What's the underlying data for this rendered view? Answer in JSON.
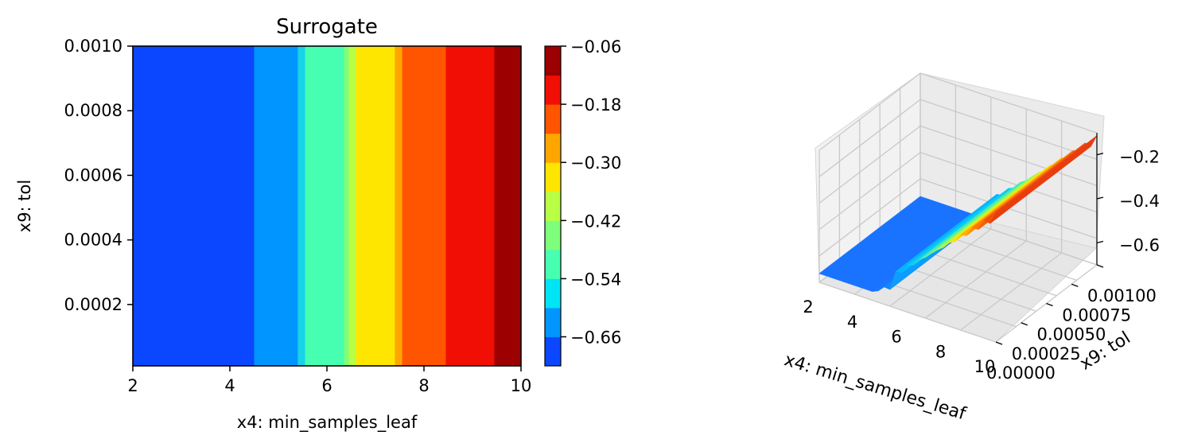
{
  "chart_data": [
    {
      "type": "heatmap",
      "title": "Surrogate",
      "xlabel": "x4: min_samples_leaf",
      "ylabel": "x9: tol",
      "xlim": [
        2,
        10
      ],
      "ylim": [
        1e-05,
        0.001
      ],
      "x_ticks": [
        "2",
        "4",
        "6",
        "8",
        "10"
      ],
      "y_ticks": [
        "0.0002",
        "0.0004",
        "0.0006",
        "0.0008",
        "0.0010"
      ],
      "x_tick_values": [
        2,
        4,
        6,
        8,
        10
      ],
      "y_tick_values": [
        0.0002,
        0.0004,
        0.0006,
        0.0008,
        0.001
      ],
      "bands": [
        {
          "x0": 2.0,
          "x1": 4.5,
          "color": "#0a47ff"
        },
        {
          "x0": 4.5,
          "x1": 5.4,
          "color": "#0095ff"
        },
        {
          "x0": 5.4,
          "x1": 5.55,
          "color": "#19d3e9"
        },
        {
          "x0": 5.55,
          "x1": 6.35,
          "color": "#46ffb0"
        },
        {
          "x0": 6.35,
          "x1": 6.45,
          "color": "#7eff7b"
        },
        {
          "x0": 6.45,
          "x1": 6.6,
          "color": "#b8ff45"
        },
        {
          "x0": 6.6,
          "x1": 7.4,
          "color": "#ffe600"
        },
        {
          "x0": 7.4,
          "x1": 7.55,
          "color": "#ffa500"
        },
        {
          "x0": 7.55,
          "x1": 8.45,
          "color": "#ff5500"
        },
        {
          "x0": 8.45,
          "x1": 9.45,
          "color": "#f10f05"
        },
        {
          "x0": 9.45,
          "x1": 10.0,
          "color": "#9c0000"
        }
      ],
      "colorbar": {
        "ticks": [
          "−0.06",
          "−0.18",
          "−0.30",
          "−0.42",
          "−0.54",
          "−0.66"
        ],
        "tick_values": [
          -0.06,
          -0.18,
          -0.3,
          -0.42,
          -0.54,
          -0.66
        ],
        "range": [
          -0.72,
          -0.06
        ],
        "levels": [
          -0.72,
          -0.66,
          -0.6,
          -0.54,
          -0.48,
          -0.42,
          -0.36,
          -0.3,
          -0.24,
          -0.18,
          -0.12,
          -0.06
        ],
        "colors": [
          "#0a47ff",
          "#0095ff",
          "#00e5f5",
          "#46ffb0",
          "#7eff7b",
          "#b8ff45",
          "#ffe600",
          "#ffa500",
          "#ff5500",
          "#f10f05",
          "#9c0000"
        ]
      }
    },
    {
      "type": "surface3d",
      "xlabel": "x4: min_samples_leaf",
      "ylabel": "x9: tol",
      "x_ticks": [
        "2",
        "4",
        "6",
        "8",
        "10"
      ],
      "y_ticks": [
        "0.00000",
        "0.00025",
        "0.00050",
        "0.00075",
        "0.00100"
      ],
      "z_ticks": [
        "−0.2",
        "−0.4",
        "−0.6"
      ],
      "z_range": [
        -0.7,
        -0.1
      ],
      "colors": {
        "low": "#1f5fff",
        "mid": "#7cff7b",
        "high": "#e8251e"
      }
    }
  ]
}
